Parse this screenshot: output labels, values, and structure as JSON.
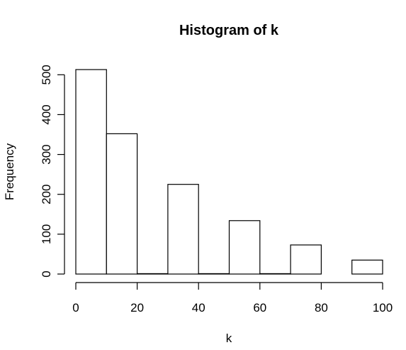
{
  "chart_data": {
    "type": "bar",
    "title": "Histogram of k",
    "xlabel": "k",
    "ylabel": "Frequency",
    "bins": [
      {
        "start": 0,
        "end": 10,
        "count": 513
      },
      {
        "start": 10,
        "end": 20,
        "count": 352
      },
      {
        "start": 20,
        "end": 30,
        "count": 1
      },
      {
        "start": 30,
        "end": 40,
        "count": 225
      },
      {
        "start": 40,
        "end": 50,
        "count": 1
      },
      {
        "start": 50,
        "end": 60,
        "count": 134
      },
      {
        "start": 60,
        "end": 70,
        "count": 1
      },
      {
        "start": 70,
        "end": 80,
        "count": 73
      },
      {
        "start": 80,
        "end": 90,
        "count": 0
      },
      {
        "start": 90,
        "end": 100,
        "count": 35
      }
    ],
    "xlim": [
      0,
      100
    ],
    "ylim": [
      0,
      513
    ],
    "x_ticks": [
      0,
      20,
      40,
      60,
      80,
      100
    ],
    "y_ticks": [
      0,
      100,
      200,
      300,
      400,
      500
    ],
    "grid": false
  }
}
